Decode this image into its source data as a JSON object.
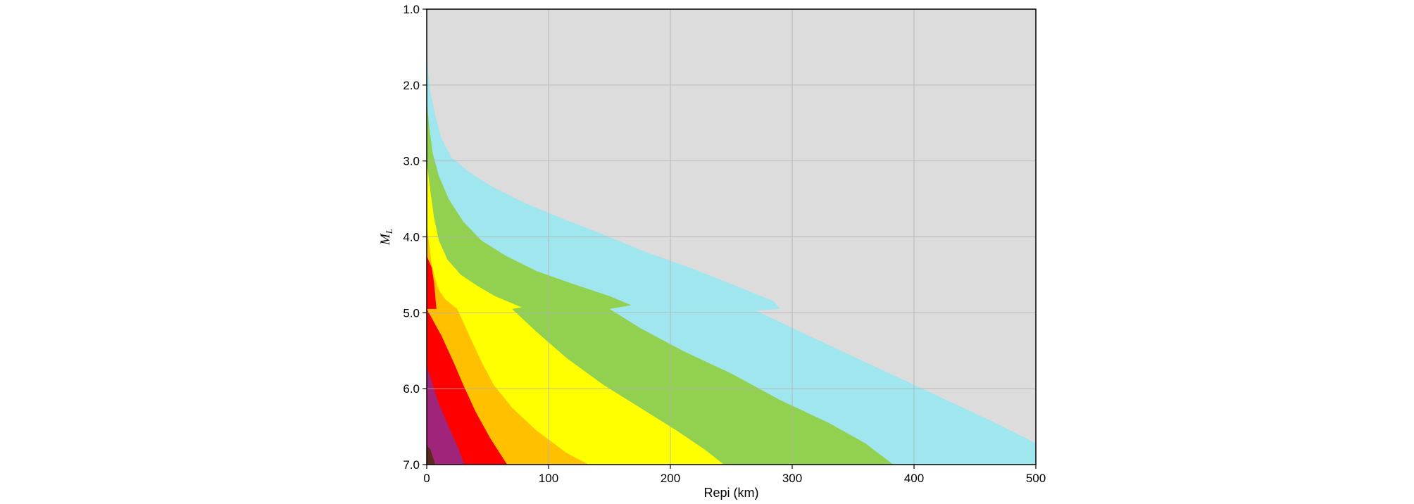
{
  "chart_data": {
    "type": "area",
    "title": "",
    "xlabel": "Repi (km)",
    "ylabel_main": "M",
    "ylabel_sub": "L",
    "xlim": [
      0,
      500
    ],
    "ylim": [
      1.0,
      7.0
    ],
    "y_inverted": true,
    "grid": true,
    "xticks": [
      0,
      100,
      200,
      300,
      400,
      500
    ],
    "xtick_labels": [
      "0",
      "100",
      "200",
      "300",
      "400",
      "500"
    ],
    "yticks": [
      1.0,
      2.0,
      3.0,
      4.0,
      5.0,
      6.0,
      7.0
    ],
    "ytick_labels": [
      "1.0",
      "2.0",
      "3.0",
      "4.0",
      "5.0",
      "6.0",
      "7.0"
    ],
    "background_color": "#dcdcdc",
    "regions": [
      {
        "name": "cyan",
        "color": "#a0e6ee",
        "boundary": [
          [
            0,
            1.5
          ],
          [
            1,
            1.8
          ],
          [
            3,
            2.1
          ],
          [
            7,
            2.4
          ],
          [
            12,
            2.7
          ],
          [
            20,
            2.95
          ],
          [
            35,
            3.15
          ],
          [
            55,
            3.35
          ],
          [
            80,
            3.55
          ],
          [
            110,
            3.75
          ],
          [
            145,
            3.97
          ],
          [
            180,
            4.2
          ],
          [
            215,
            4.4
          ],
          [
            250,
            4.62
          ],
          [
            285,
            4.85
          ],
          [
            290,
            4.95
          ],
          [
            270,
            4.97
          ],
          [
            300,
            5.2
          ],
          [
            340,
            5.5
          ],
          [
            380,
            5.8
          ],
          [
            420,
            6.1
          ],
          [
            460,
            6.4
          ],
          [
            500,
            6.72
          ]
        ]
      },
      {
        "name": "green",
        "color": "#92d050",
        "boundary": [
          [
            0,
            2.2
          ],
          [
            2,
            2.55
          ],
          [
            5,
            2.9
          ],
          [
            10,
            3.2
          ],
          [
            18,
            3.5
          ],
          [
            30,
            3.8
          ],
          [
            45,
            4.05
          ],
          [
            65,
            4.25
          ],
          [
            90,
            4.45
          ],
          [
            120,
            4.62
          ],
          [
            150,
            4.78
          ],
          [
            168,
            4.9
          ],
          [
            150,
            4.95
          ],
          [
            175,
            5.2
          ],
          [
            210,
            5.5
          ],
          [
            250,
            5.8
          ],
          [
            290,
            6.15
          ],
          [
            330,
            6.45
          ],
          [
            360,
            6.72
          ],
          [
            383,
            7.0
          ]
        ]
      },
      {
        "name": "yellow",
        "color": "#ffff00",
        "boundary": [
          [
            0,
            3.0
          ],
          [
            3,
            3.4
          ],
          [
            6,
            3.75
          ],
          [
            10,
            4.05
          ],
          [
            17,
            4.3
          ],
          [
            28,
            4.5
          ],
          [
            42,
            4.65
          ],
          [
            56,
            4.78
          ],
          [
            78,
            4.93
          ],
          [
            70,
            4.95
          ],
          [
            90,
            5.25
          ],
          [
            115,
            5.6
          ],
          [
            145,
            5.95
          ],
          [
            175,
            6.25
          ],
          [
            205,
            6.55
          ],
          [
            228,
            6.8
          ],
          [
            244,
            7.0
          ]
        ]
      },
      {
        "name": "orange",
        "color": "#ffc000",
        "boundary": [
          [
            0,
            3.85
          ],
          [
            2,
            4.1
          ],
          [
            4,
            4.35
          ],
          [
            7,
            4.55
          ],
          [
            10,
            4.7
          ],
          [
            15,
            4.82
          ],
          [
            25,
            4.95
          ],
          [
            35,
            5.3
          ],
          [
            45,
            5.65
          ],
          [
            55,
            5.95
          ],
          [
            70,
            6.25
          ],
          [
            90,
            6.55
          ],
          [
            115,
            6.85
          ],
          [
            133,
            7.0
          ]
        ]
      },
      {
        "name": "red",
        "color": "#ff0000",
        "boundary": [
          [
            0,
            4.25
          ],
          [
            4,
            4.4
          ],
          [
            6,
            4.6
          ],
          [
            8,
            4.95
          ],
          [
            0,
            4.95
          ],
          [
            12,
            5.3
          ],
          [
            22,
            5.65
          ],
          [
            30,
            5.95
          ],
          [
            40,
            6.3
          ],
          [
            52,
            6.65
          ],
          [
            66,
            7.0
          ]
        ]
      },
      {
        "name": "purple",
        "color": "#a0257a",
        "boundary": [
          [
            0,
            5.7
          ],
          [
            5,
            5.95
          ],
          [
            10,
            6.2
          ],
          [
            18,
            6.5
          ],
          [
            25,
            6.75
          ],
          [
            31,
            7.0
          ]
        ]
      },
      {
        "name": "brown",
        "color": "#5a2a1e",
        "boundary": [
          [
            0,
            6.75
          ],
          [
            3,
            6.8
          ],
          [
            5,
            6.9
          ],
          [
            7,
            7.0
          ]
        ]
      }
    ]
  }
}
